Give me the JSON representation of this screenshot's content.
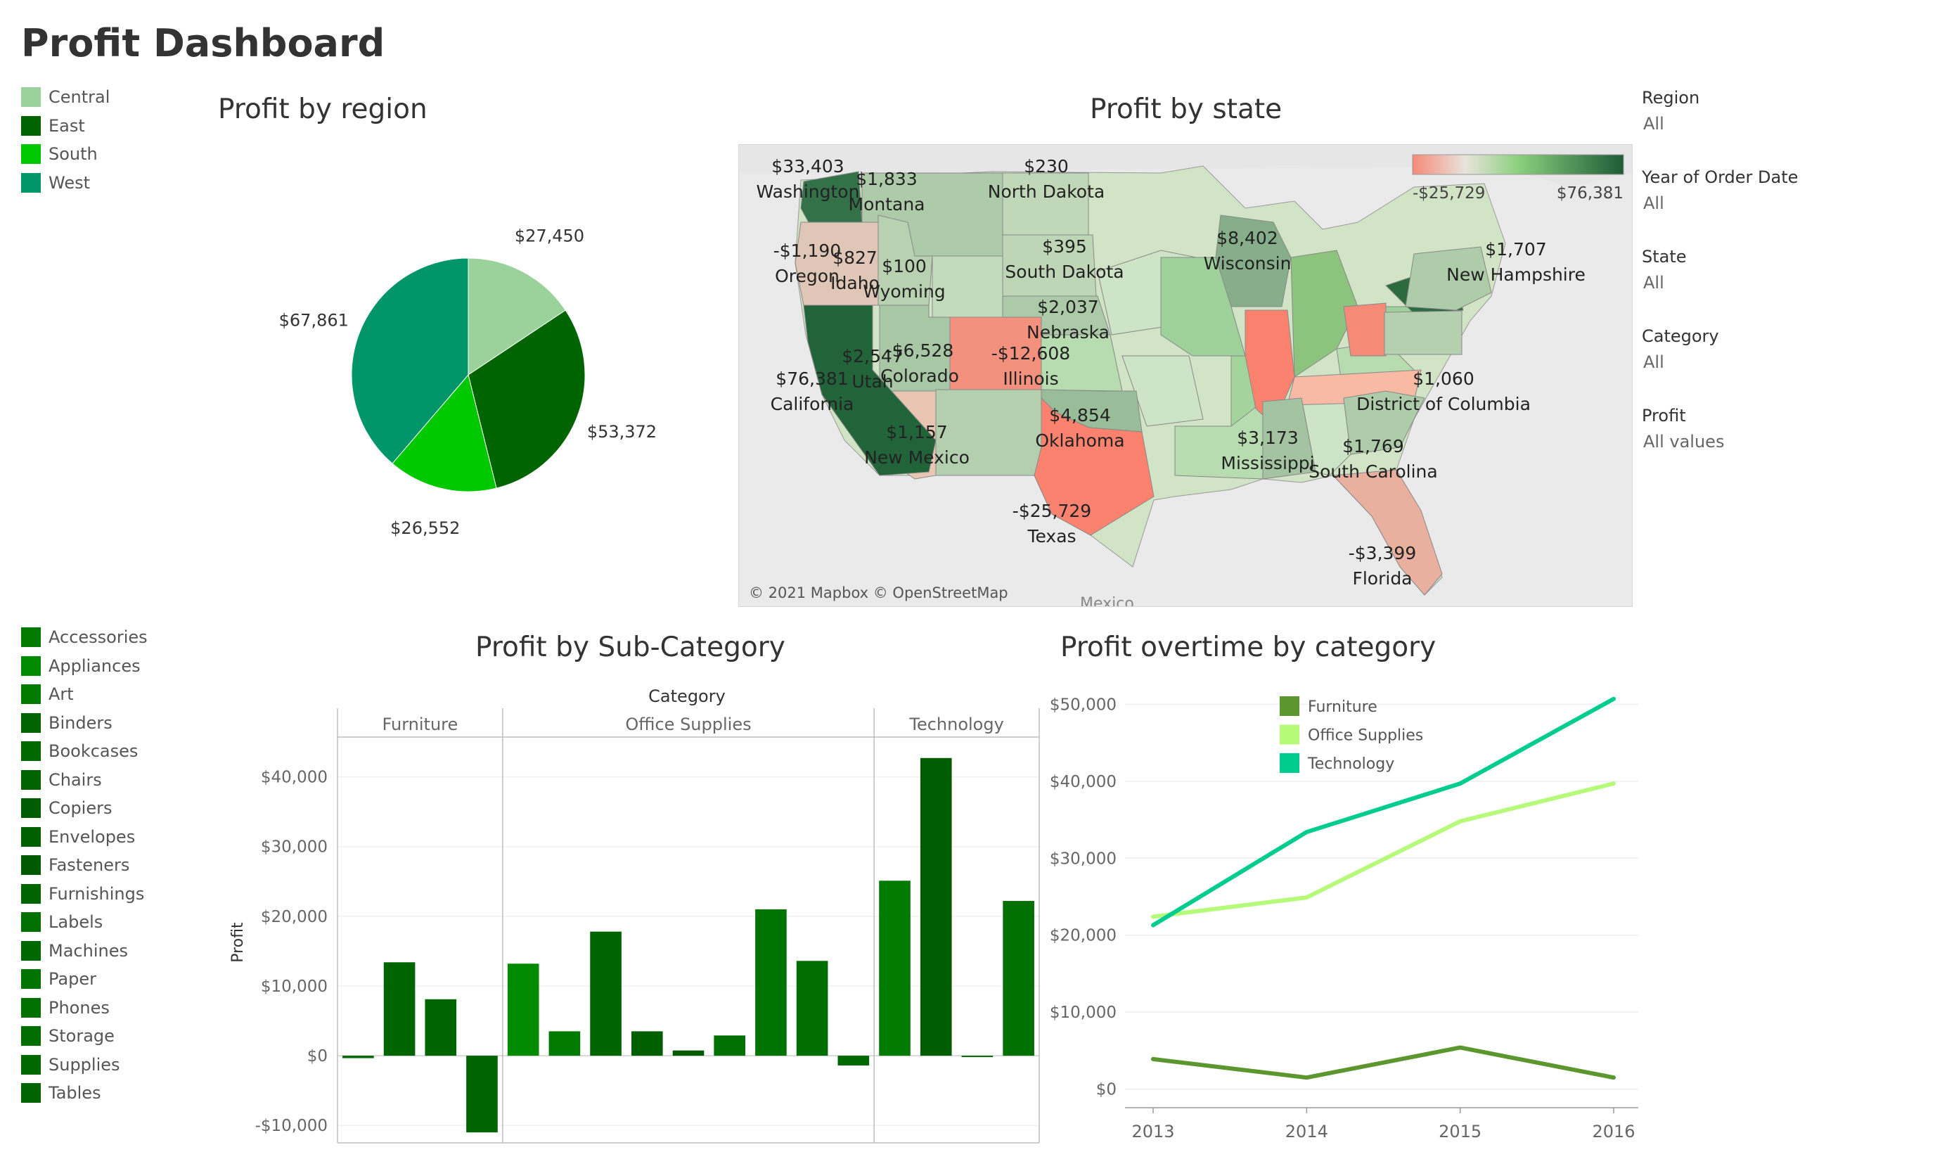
{
  "dashboard": {
    "title": "Profit Dashboard"
  },
  "region_legend": [
    {
      "label": "Central",
      "color": "#9bd19b"
    },
    {
      "label": "East",
      "color": "#006400"
    },
    {
      "label": "South",
      "color": "#00c800"
    },
    {
      "label": "West",
      "color": "#00966a"
    }
  ],
  "subcategory_legend": [
    {
      "label": "Accessories",
      "color": "#007a00"
    },
    {
      "label": "Appliances",
      "color": "#008a00"
    },
    {
      "label": "Art",
      "color": "#007a00"
    },
    {
      "label": "Binders",
      "color": "#006400"
    },
    {
      "label": "Bookcases",
      "color": "#006a00"
    },
    {
      "label": "Chairs",
      "color": "#006400"
    },
    {
      "label": "Copiers",
      "color": "#005c00"
    },
    {
      "label": "Envelopes",
      "color": "#006000"
    },
    {
      "label": "Fasteners",
      "color": "#005a00"
    },
    {
      "label": "Furnishings",
      "color": "#006400"
    },
    {
      "label": "Labels",
      "color": "#007000"
    },
    {
      "label": "Machines",
      "color": "#006800"
    },
    {
      "label": "Paper",
      "color": "#007400"
    },
    {
      "label": "Phones",
      "color": "#007000"
    },
    {
      "label": "Storage",
      "color": "#006e00"
    },
    {
      "label": "Supplies",
      "color": "#006800"
    },
    {
      "label": "Tables",
      "color": "#006400"
    }
  ],
  "filters": [
    {
      "label": "Region",
      "value": "All"
    },
    {
      "label": "Year of Order Date",
      "value": "All"
    },
    {
      "label": "State",
      "value": "All"
    },
    {
      "label": "Category",
      "value": "All"
    },
    {
      "label": "Profit",
      "value": "All values"
    }
  ],
  "pie": {
    "title": "Profit by region",
    "chart_data": {
      "type": "pie",
      "slices": [
        {
          "name": "Central",
          "value": 27450,
          "label": "$27,450",
          "color": "#9bd19b"
        },
        {
          "name": "East",
          "value": 53372,
          "label": "$53,372",
          "color": "#006400"
        },
        {
          "name": "South",
          "value": 26552,
          "label": "$26,552",
          "color": "#00c800"
        },
        {
          "name": "West",
          "value": 67861,
          "label": "$67,861",
          "color": "#00966a"
        }
      ]
    }
  },
  "map": {
    "title": "Profit by state",
    "attribution": "© 2021 Mapbox © OpenStreetMap",
    "country_label": "Mexico",
    "scale": {
      "min_label": "-$25,729",
      "max_label": "$76,381",
      "min": -25729,
      "max": 76381
    },
    "states": [
      {
        "name": "Washington",
        "value": "$33,403",
        "profit": 33403
      },
      {
        "name": "Montana",
        "value": "$1,833",
        "profit": 1833
      },
      {
        "name": "North Dakota",
        "value": "$230",
        "profit": 230
      },
      {
        "name": "Oregon",
        "value": "-$1,190",
        "profit": -1190
      },
      {
        "name": "Idaho",
        "value": "$827",
        "profit": 827
      },
      {
        "name": "Wyoming",
        "value": "$100",
        "profit": 100
      },
      {
        "name": "South Dakota",
        "value": "$395",
        "profit": 395
      },
      {
        "name": "Wisconsin",
        "value": "$8,402",
        "profit": 8402
      },
      {
        "name": "New Hampshire",
        "value": "$1,707",
        "profit": 1707
      },
      {
        "name": "Nebraska",
        "value": "$2,037",
        "profit": 2037
      },
      {
        "name": "Utah",
        "value": "$2,547",
        "profit": 2547
      },
      {
        "name": "Colorado",
        "value": "-$6,528",
        "profit": -6528
      },
      {
        "name": "Illinois",
        "value": "-$12,608",
        "profit": -12608
      },
      {
        "name": "District of Columbia",
        "value": "$1,060",
        "profit": 1060
      },
      {
        "name": "California",
        "value": "$76,381",
        "profit": 76381
      },
      {
        "name": "Oklahoma",
        "value": "$4,854",
        "profit": 4854
      },
      {
        "name": "New Mexico",
        "value": "$1,157",
        "profit": 1157
      },
      {
        "name": "Mississippi",
        "value": "$3,173",
        "profit": 3173
      },
      {
        "name": "South Carolina",
        "value": "$1,769",
        "profit": 1769
      },
      {
        "name": "Texas",
        "value": "-$25,729",
        "profit": -25729
      },
      {
        "name": "Florida",
        "value": "-$3,399",
        "profit": -3399
      }
    ]
  },
  "bar": {
    "title": "Profit by Sub-Category",
    "chart_data": {
      "type": "bar",
      "column_header": "Category",
      "ylabel": "Profit",
      "ylim": [
        -12500,
        45000
      ],
      "yticks": [
        -10000,
        0,
        10000,
        20000,
        30000,
        40000
      ],
      "ytick_labels": [
        "-$10,000",
        "$0",
        "$10,000",
        "$20,000",
        "$30,000",
        "$40,000"
      ],
      "groups": [
        {
          "name": "Furniture",
          "categories": [
            "Bookcases",
            "Chairs",
            "Furnishings",
            "Tables"
          ],
          "values": [
            -350,
            13400,
            8100,
            -11000
          ],
          "colors": [
            "#006a00",
            "#006400",
            "#006400",
            "#006400"
          ]
        },
        {
          "name": "Office Supplies",
          "categories": [
            "Appliances",
            "Art",
            "Binders",
            "Envelopes",
            "Fasteners",
            "Labels",
            "Paper",
            "Storage",
            "Supplies"
          ],
          "values": [
            13200,
            3500,
            17800,
            3500,
            750,
            2900,
            21000,
            13600,
            -1400
          ],
          "colors": [
            "#008a00",
            "#007a00",
            "#006400",
            "#006000",
            "#005a00",
            "#007000",
            "#007400",
            "#006e00",
            "#006800"
          ]
        },
        {
          "name": "Technology",
          "categories": [
            "Accessories",
            "Copiers",
            "Machines",
            "Phones"
          ],
          "values": [
            25100,
            42700,
            -200,
            22200
          ],
          "colors": [
            "#007a00",
            "#005c00",
            "#006800",
            "#007000"
          ]
        }
      ]
    }
  },
  "line": {
    "title": "Profit overtime by category",
    "chart_data": {
      "type": "line",
      "x": [
        2013,
        2014,
        2015,
        2016
      ],
      "ylim": [
        -1500,
        51500
      ],
      "yticks": [
        0,
        10000,
        20000,
        30000,
        40000,
        50000
      ],
      "ytick_labels": [
        "$0",
        "$10,000",
        "$20,000",
        "$30,000",
        "$40,000",
        "$50,000"
      ],
      "xtick_labels": [
        "2013",
        "2014",
        "2015",
        "2016"
      ],
      "series": [
        {
          "name": "Furniture",
          "values": [
            3900,
            1500,
            5400,
            1500
          ],
          "color": "#5c962f"
        },
        {
          "name": "Office Supplies",
          "values": [
            22400,
            24900,
            34800,
            39700
          ],
          "color": "#b5fb79"
        },
        {
          "name": "Technology",
          "values": [
            21300,
            33400,
            39700,
            50700
          ],
          "color": "#00cc8f"
        }
      ],
      "legend": "top-left"
    }
  }
}
